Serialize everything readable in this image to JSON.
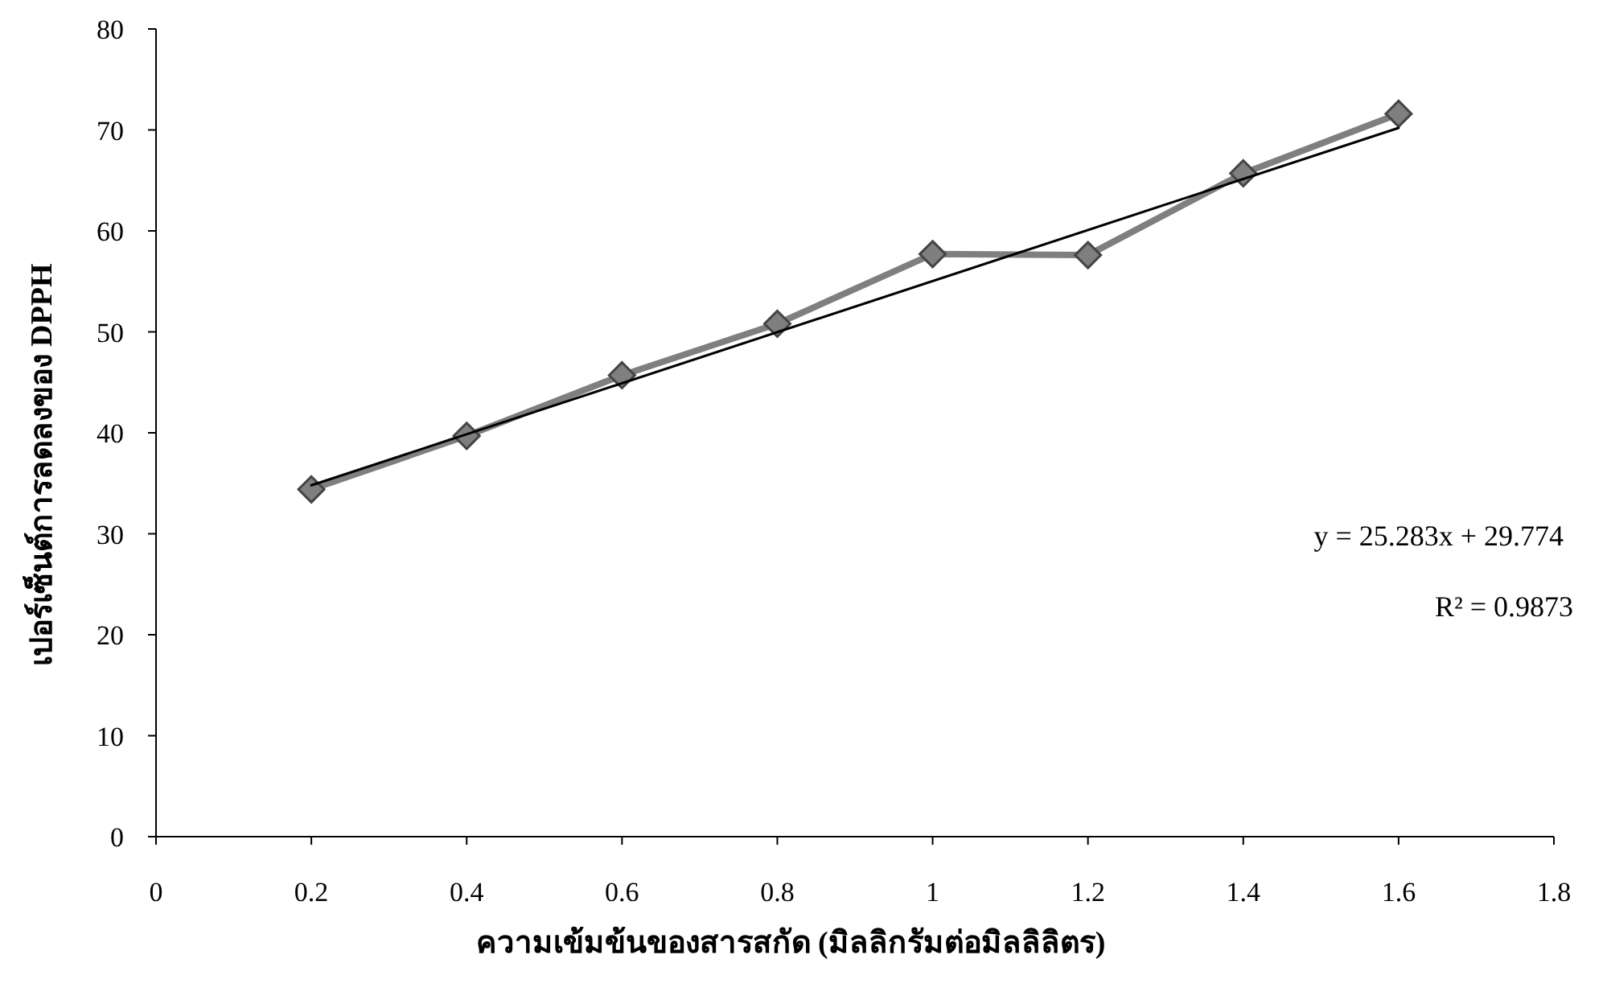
{
  "chart_data": {
    "type": "line",
    "xlabel": "ความเข้มข้นของสารสกัด (มิลลิกรัมต่อมิลลิลิตร)",
    "ylabel": "เปอร์เซ็นต์การลดลงของ DPPH",
    "xlim": [
      0,
      1.8
    ],
    "xticks": [
      0,
      0.2,
      0.4,
      0.6,
      0.8,
      1,
      1.2,
      1.4,
      1.6,
      1.8
    ],
    "ylim": [
      0,
      80
    ],
    "yticks": [
      0,
      10,
      20,
      30,
      40,
      50,
      60,
      70,
      80
    ],
    "grid": false,
    "annotations": [
      "y = 25.283x + 29.774",
      "R² = 0.9873"
    ],
    "series": [
      {
        "type": "line",
        "color": "#7f7f7f",
        "marker": "diamond",
        "line_style": "solid",
        "x": [
          0.2,
          0.4,
          0.6,
          0.8,
          1,
          1.2,
          1.4,
          1.6
        ],
        "values": [
          34.4,
          39.7,
          45.7,
          50.8,
          57.7,
          57.6,
          65.7,
          71.6
        ]
      },
      {
        "type": "line",
        "color": "#000000",
        "marker": "none",
        "line_style": "solid",
        "x": [
          0.2,
          1.6
        ],
        "values": [
          34.8,
          70.2
        ]
      }
    ]
  }
}
